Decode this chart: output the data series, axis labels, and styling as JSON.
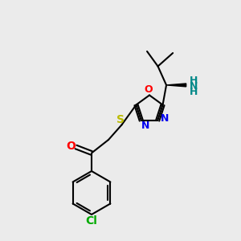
{
  "background_color": "#ebebeb",
  "bond_color": "#000000",
  "bond_width": 1.5,
  "atom_colors": {
    "O": "#ff0000",
    "N": "#0000ee",
    "S": "#bbbb00",
    "Cl": "#00aa00",
    "NH2": "#008888",
    "C": "#000000"
  },
  "figsize": [
    3.0,
    3.0
  ],
  "dpi": 100,
  "xlim": [
    0,
    10
  ],
  "ylim": [
    0,
    10
  ]
}
